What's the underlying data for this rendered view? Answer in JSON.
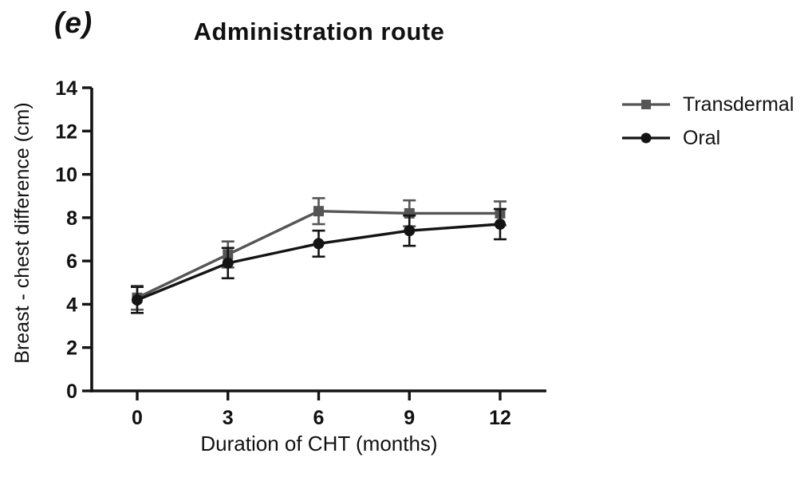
{
  "panel_label": "(e)",
  "title": "Administration route",
  "legend": [
    {
      "label": "Transdermal",
      "color": "#555555",
      "marker": "square"
    },
    {
      "label": "Oral",
      "color": "#141414",
      "marker": "circle"
    }
  ],
  "colors": {
    "axis": "#141414",
    "transdermal": "#555555",
    "oral": "#141414"
  },
  "chart_data": {
    "type": "line",
    "title": "Administration route",
    "xlabel": "Duration of CHT (months)",
    "ylabel": "Breast - chest difference (cm)",
    "x": [
      0,
      3,
      6,
      9,
      12
    ],
    "xticks": [
      0,
      3,
      6,
      9,
      12
    ],
    "ylim": [
      0,
      14
    ],
    "ytick_step": 2,
    "grid": false,
    "legend_position": "right",
    "error_bars": true,
    "series": [
      {
        "name": "Transdermal",
        "marker": "square",
        "color": "#555555",
        "values": [
          4.3,
          6.3,
          8.3,
          8.2,
          8.2
        ],
        "error": [
          0.55,
          0.6,
          0.6,
          0.6,
          0.55
        ]
      },
      {
        "name": "Oral",
        "marker": "circle",
        "color": "#141414",
        "values": [
          4.2,
          5.9,
          6.8,
          7.4,
          7.7
        ],
        "error": [
          0.6,
          0.7,
          0.6,
          0.7,
          0.7
        ]
      }
    ]
  }
}
